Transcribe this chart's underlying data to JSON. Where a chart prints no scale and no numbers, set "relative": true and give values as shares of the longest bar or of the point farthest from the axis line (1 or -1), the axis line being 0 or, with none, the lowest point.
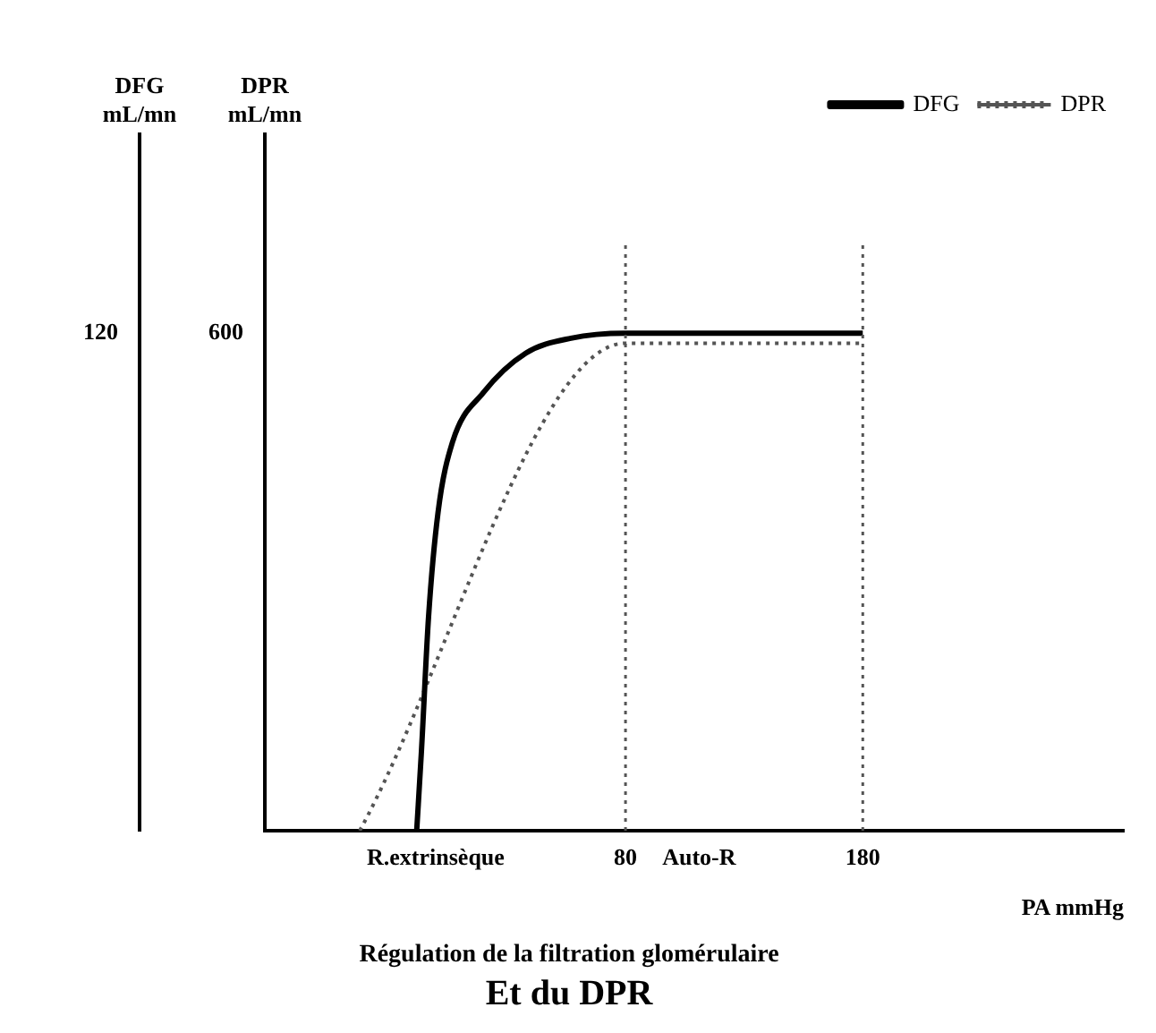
{
  "chart_data": {
    "type": "line",
    "title": "Régulation de la filtration glomérulaire",
    "subtitle": "Et du DPR",
    "xlabel": "PA mmHg",
    "relative": true,
    "xlim": [
      -72,
      290
    ],
    "xticks": [
      {
        "value": 0,
        "label": "R.extrinsèque"
      },
      80,
      {
        "value": 111,
        "label": "Auto-R"
      },
      180
    ],
    "series": [
      {
        "name": "DFG",
        "color": "#000000",
        "line_style": "solid",
        "x": [
          -8,
          -6,
          -3,
          1,
          7,
          20,
          38,
          57,
          80,
          180
        ],
        "values": [
          0,
          0.16,
          0.43,
          0.64,
          0.78,
          0.88,
          0.96,
          0.99,
          1,
          1
        ]
      },
      {
        "name": "DPR",
        "color": "#555555",
        "line_style": "dotted",
        "x": [
          -32,
          80,
          180
        ],
        "values": [
          0,
          0.98,
          0.98
        ]
      }
    ],
    "ref_lines": [
      {
        "axis": "x",
        "value": 80,
        "line_style": "dotted",
        "color": "#555555"
      },
      {
        "axis": "x",
        "value": 180,
        "line_style": "dotted",
        "color": "#555555"
      }
    ],
    "annotations": [
      "120",
      "600",
      "DFG mL/mn",
      "DPR mL/mn"
    ],
    "legend": "top right",
    "grid": false,
    "marker": "none"
  }
}
